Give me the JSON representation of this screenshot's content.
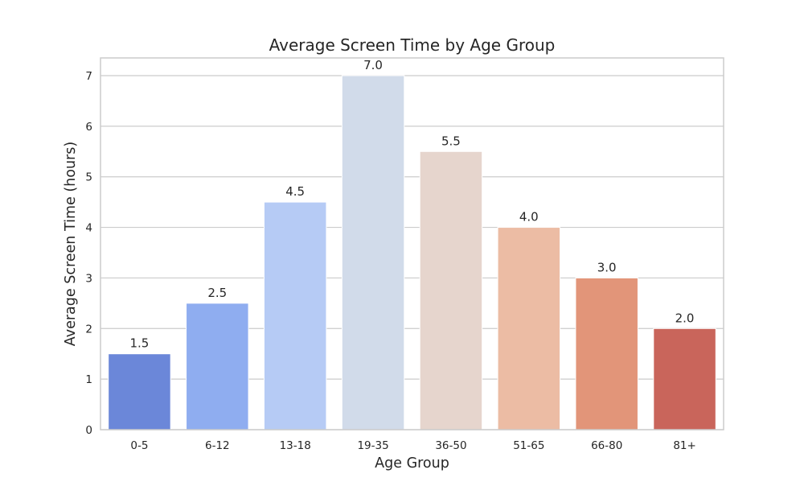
{
  "chart_data": {
    "type": "bar",
    "title": "Average Screen Time by Age Group",
    "xlabel": "Age Group",
    "ylabel": "Average Screen Time (hours)",
    "categories": [
      "0-5",
      "6-12",
      "13-18",
      "19-35",
      "36-50",
      "51-65",
      "66-80",
      "81+"
    ],
    "values": [
      1.5,
      2.5,
      4.5,
      7.0,
      5.5,
      4.0,
      3.0,
      2.0
    ],
    "value_labels": [
      "1.5",
      "2.5",
      "4.5",
      "7.0",
      "5.5",
      "4.0",
      "3.0",
      "2.0"
    ],
    "colors": [
      "#6b87d9",
      "#8fadf0",
      "#b6cbf5",
      "#d1dbea",
      "#e6d5cd",
      "#ecbca4",
      "#e29579",
      "#c9655b"
    ],
    "ylim": [
      0,
      7.35
    ],
    "yticks": [
      0,
      1,
      2,
      3,
      4,
      5,
      6,
      7
    ],
    "grid": true,
    "legend": "none"
  }
}
